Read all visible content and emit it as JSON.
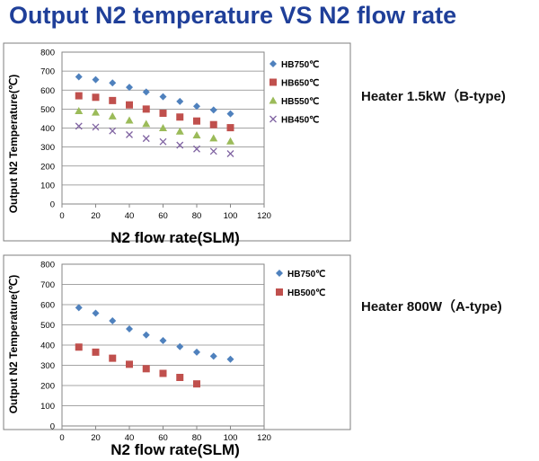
{
  "title": "Output N2 temperature VS N2 flow rate",
  "colors": {
    "title": "#1f3f99",
    "blue_diamond": "#4f81bd",
    "red_square": "#c0504d",
    "green_triangle": "#9bbb59",
    "purple_cross": "#8064a2"
  },
  "chart_data": [
    {
      "type": "scatter",
      "note": "Heater 1.5kW（B-type)",
      "xlabel": "N2 flow rate(SLM)",
      "ylabel": "Output N2 Temperature(℃)",
      "xlim": [
        0,
        120
      ],
      "ylim": [
        0,
        800
      ],
      "xticks": [
        0,
        20,
        40,
        60,
        80,
        100,
        120
      ],
      "yticks": [
        0,
        100,
        200,
        300,
        400,
        500,
        600,
        700,
        800
      ],
      "grid": "horizontal",
      "legend": "right",
      "series": [
        {
          "name": "HB750℃",
          "marker": "diamond",
          "color": "#4f81bd",
          "x": [
            10,
            20,
            30,
            40,
            50,
            60,
            70,
            80,
            90,
            100
          ],
          "y": [
            670,
            655,
            638,
            615,
            590,
            565,
            540,
            515,
            495,
            475
          ]
        },
        {
          "name": "HB650℃",
          "marker": "square",
          "color": "#c0504d",
          "x": [
            10,
            20,
            30,
            40,
            50,
            60,
            70,
            80,
            90,
            100
          ],
          "y": [
            570,
            562,
            545,
            522,
            500,
            478,
            458,
            437,
            418,
            402
          ]
        },
        {
          "name": "HB550℃",
          "marker": "triangle",
          "color": "#9bbb59",
          "x": [
            10,
            20,
            30,
            40,
            50,
            60,
            70,
            80,
            90,
            100
          ],
          "y": [
            490,
            482,
            462,
            440,
            422,
            400,
            382,
            362,
            346,
            330
          ]
        },
        {
          "name": "HB450℃",
          "marker": "cross",
          "color": "#8064a2",
          "x": [
            10,
            20,
            30,
            40,
            50,
            60,
            70,
            80,
            90,
            100
          ],
          "y": [
            410,
            405,
            385,
            365,
            345,
            328,
            310,
            290,
            278,
            265
          ]
        }
      ]
    },
    {
      "type": "scatter",
      "note": "Heater 800W（A-type)",
      "xlabel": "N2 flow rate(SLM)",
      "ylabel": "Output N2 Temperature(℃)",
      "xlim": [
        0,
        120
      ],
      "ylim": [
        0,
        800
      ],
      "xticks": [
        0,
        20,
        40,
        60,
        80,
        100,
        120
      ],
      "yticks": [
        0,
        100,
        200,
        300,
        400,
        500,
        600,
        700,
        800
      ],
      "grid": "horizontal",
      "legend": "right",
      "series": [
        {
          "name": "HB750℃",
          "marker": "diamond",
          "color": "#4f81bd",
          "x": [
            10,
            20,
            30,
            40,
            50,
            60,
            70,
            80,
            90,
            100
          ],
          "y": [
            585,
            558,
            520,
            480,
            450,
            422,
            392,
            365,
            345,
            330
          ]
        },
        {
          "name": "HB500℃",
          "marker": "square",
          "color": "#c0504d",
          "x": [
            10,
            20,
            30,
            40,
            50,
            60,
            70,
            80
          ],
          "y": [
            390,
            365,
            335,
            305,
            283,
            260,
            240,
            208
          ]
        }
      ]
    }
  ]
}
